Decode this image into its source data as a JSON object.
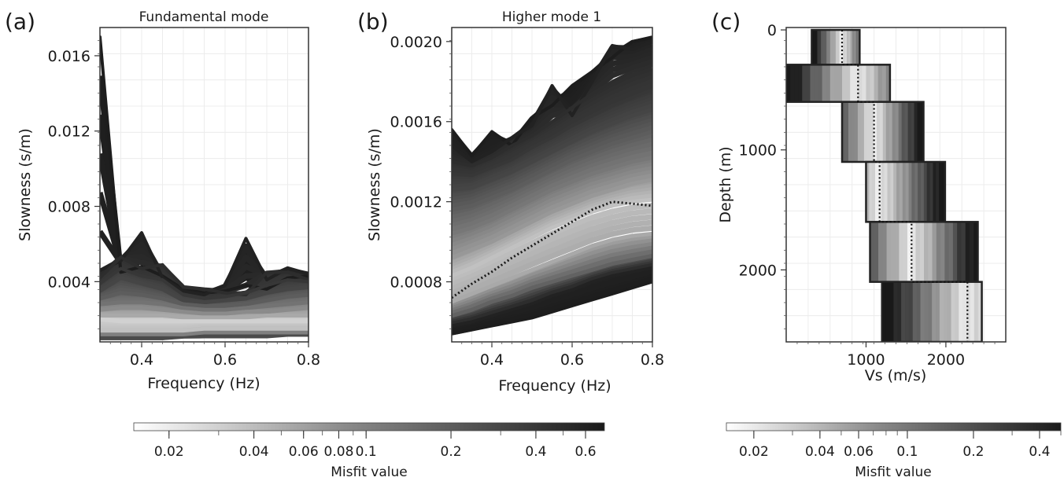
{
  "panels": {
    "a": {
      "label": "(a)"
    },
    "b": {
      "label": "(b)"
    },
    "c": {
      "label": "(c)"
    }
  },
  "chart_data": [
    {
      "id": "a",
      "type": "line",
      "title": "Fundamental mode",
      "xlabel": "Frequency (Hz)",
      "ylabel": "Slowness (s/m)",
      "xlim": [
        0.3,
        0.8
      ],
      "ylim": [
        0.0008,
        0.0175
      ],
      "xticks": [
        "0.4",
        "0.6",
        "0.8"
      ],
      "xtick_values": [
        0.4,
        0.6,
        0.8
      ],
      "yticks": [
        "0.004",
        "0.008",
        "0.012",
        "0.016"
      ],
      "ytick_values": [
        0.004,
        0.008,
        0.012,
        0.016
      ],
      "grid": true,
      "color_by": "misfit",
      "x": [
        0.3,
        0.35,
        0.4,
        0.45,
        0.5,
        0.55,
        0.6,
        0.65,
        0.7,
        0.75,
        0.8
      ],
      "series": [
        {
          "values": [
            0.017,
            0.0045,
            0.0048,
            0.0043,
            0.0036,
            0.0034,
            0.0035,
            0.0038,
            0.0036,
            0.0042,
            0.0043
          ],
          "misfit": 0.65
        },
        {
          "values": [
            0.0046,
            0.0051,
            0.0066,
            0.0042,
            0.0035,
            0.0033,
            0.0038,
            0.0063,
            0.0041,
            0.0047,
            0.0044
          ],
          "misfit": 0.6
        },
        {
          "values": [
            0.0042,
            0.0053,
            0.0047,
            0.0049,
            0.0037,
            0.0036,
            0.0034,
            0.0033,
            0.0045,
            0.0045,
            0.0041
          ],
          "misfit": 0.5
        },
        {
          "values": [
            0.0039,
            0.0047,
            0.0043,
            0.0041,
            0.0033,
            0.0031,
            0.0032,
            0.0034,
            0.0038,
            0.0041,
            0.004
          ],
          "misfit": 0.42
        },
        {
          "values": [
            0.0035,
            0.0042,
            0.0039,
            0.0036,
            0.003,
            0.0029,
            0.003,
            0.0031,
            0.0034,
            0.0036,
            0.0037
          ],
          "misfit": 0.33
        },
        {
          "values": [
            0.0031,
            0.0034,
            0.0033,
            0.0031,
            0.0028,
            0.0027,
            0.0027,
            0.0028,
            0.003,
            0.0032,
            0.0033
          ],
          "misfit": 0.22
        },
        {
          "values": [
            0.0028,
            0.0029,
            0.0029,
            0.0028,
            0.0026,
            0.0025,
            0.0025,
            0.0026,
            0.0027,
            0.0028,
            0.0029
          ],
          "misfit": 0.15
        },
        {
          "values": [
            0.0025,
            0.0026,
            0.0026,
            0.0025,
            0.0024,
            0.0023,
            0.0023,
            0.0024,
            0.0024,
            0.0025,
            0.0026
          ],
          "misfit": 0.1
        },
        {
          "values": [
            0.0022,
            0.0022,
            0.0022,
            0.0022,
            0.0021,
            0.0021,
            0.0021,
            0.0021,
            0.0022,
            0.0022,
            0.0022
          ],
          "misfit": 0.06
        },
        {
          "values": [
            0.002,
            0.0019,
            0.0019,
            0.0019,
            0.0019,
            0.0019,
            0.0019,
            0.0019,
            0.0019,
            0.0019,
            0.0019
          ],
          "misfit": 0.03
        },
        {
          "values": [
            0.0014,
            0.0014,
            0.0014,
            0.0014,
            0.0014,
            0.0015,
            0.0015,
            0.0015,
            0.0015,
            0.0015,
            0.0015
          ],
          "misfit": 0.04
        },
        {
          "values": [
            0.0012,
            0.0012,
            0.0012,
            0.0012,
            0.0012,
            0.0013,
            0.0013,
            0.0013,
            0.0013,
            0.0013,
            0.0013
          ],
          "misfit": 0.12
        },
        {
          "values": [
            0.001,
            0.001,
            0.001,
            0.001,
            0.0011,
            0.0011,
            0.0011,
            0.0011,
            0.0011,
            0.0012,
            0.0012
          ],
          "misfit": 0.3
        }
      ]
    },
    {
      "id": "b",
      "type": "line",
      "title": "Higher mode 1",
      "xlabel": "Frequency (Hz)",
      "ylabel": "Slowness (s/m)",
      "xlim": [
        0.3,
        0.8
      ],
      "ylim": [
        0.0005,
        0.00207
      ],
      "xticks": [
        "0.4",
        "0.6",
        "0.8"
      ],
      "xtick_values": [
        0.4,
        0.6,
        0.8
      ],
      "yticks": [
        "0.0008",
        "0.0012",
        "0.0016",
        "0.0020"
      ],
      "ytick_values": [
        0.0008,
        0.0012,
        0.0016,
        0.002
      ],
      "grid": true,
      "color_by": "misfit",
      "x": [
        0.3,
        0.35,
        0.4,
        0.45,
        0.5,
        0.55,
        0.6,
        0.65,
        0.7,
        0.75,
        0.8
      ],
      "series": [
        {
          "values": [
            0.00156,
            0.00143,
            0.00155,
            0.00148,
            0.00162,
            0.00168,
            0.00178,
            0.00185,
            0.00192,
            0.002,
            0.00202
          ],
          "misfit": 0.65
        },
        {
          "values": [
            0.00148,
            0.0014,
            0.00145,
            0.00152,
            0.00158,
            0.00178,
            0.00163,
            0.0018,
            0.00198,
            0.00196,
            0.002
          ],
          "misfit": 0.6
        },
        {
          "values": [
            0.0014,
            0.00138,
            0.00142,
            0.00148,
            0.00153,
            0.0016,
            0.00167,
            0.00174,
            0.0018,
            0.00185,
            0.00188
          ],
          "misfit": 0.5
        },
        {
          "values": [
            0.00134,
            0.00133,
            0.00137,
            0.00141,
            0.00147,
            0.00152,
            0.00158,
            0.00163,
            0.00168,
            0.00172,
            0.00176
          ],
          "misfit": 0.42
        },
        {
          "values": [
            0.00126,
            0.00127,
            0.00131,
            0.00135,
            0.0014,
            0.00145,
            0.0015,
            0.00155,
            0.00159,
            0.00163,
            0.00166
          ],
          "misfit": 0.33
        },
        {
          "values": [
            0.00116,
            0.00118,
            0.00122,
            0.00126,
            0.00131,
            0.00136,
            0.00141,
            0.00145,
            0.00149,
            0.00152,
            0.00155
          ],
          "misfit": 0.22
        },
        {
          "values": [
            0.00104,
            0.00107,
            0.00111,
            0.00116,
            0.00121,
            0.00126,
            0.0013,
            0.00134,
            0.00137,
            0.0014,
            0.00142
          ],
          "misfit": 0.14
        },
        {
          "values": [
            0.00092,
            0.00096,
            0.001,
            0.00105,
            0.0011,
            0.00115,
            0.00119,
            0.00123,
            0.00126,
            0.00129,
            0.00131
          ],
          "misfit": 0.08
        },
        {
          "values": [
            0.00083,
            0.00087,
            0.00092,
            0.00097,
            0.00102,
            0.00107,
            0.00111,
            0.00115,
            0.00118,
            0.0012,
            0.00121
          ],
          "misfit": 0.04
        },
        {
          "values": [
            0.0007,
            0.00074,
            0.00078,
            0.00082,
            0.00086,
            0.0009,
            0.00094,
            0.00098,
            0.00101,
            0.00103,
            0.00104
          ],
          "misfit": 0.06
        },
        {
          "values": [
            0.00063,
            0.00066,
            0.0007,
            0.00073,
            0.00077,
            0.0008,
            0.00083,
            0.00086,
            0.00089,
            0.00091,
            0.00093
          ],
          "misfit": 0.2
        },
        {
          "values": [
            0.00058,
            0.0006,
            0.00063,
            0.00066,
            0.00069,
            0.00073,
            0.00076,
            0.0008,
            0.00083,
            0.00085,
            0.00087
          ],
          "misfit": 0.6
        },
        {
          "values": [
            0.00054,
            0.00056,
            0.00058,
            0.0006,
            0.00062,
            0.00065,
            0.00068,
            0.00071,
            0.00074,
            0.00077,
            0.0008
          ],
          "misfit": 0.65
        },
        {
          "values": [
            0.00072,
            0.00079,
            0.00085,
            0.00092,
            0.00098,
            0.00104,
            0.0011,
            0.00116,
            0.0012,
            0.00119,
            0.00118
          ],
          "dotted": true
        }
      ]
    },
    {
      "id": "c",
      "type": "line",
      "xlabel": "Vs (m/s)",
      "ylabel": "Depth (m)",
      "xlim": [
        0,
        2750
      ],
      "ylim": [
        2600,
        -20
      ],
      "xticks": [
        "1000",
        "2000"
      ],
      "xtick_values": [
        1000,
        2000
      ],
      "yticks": [
        "0",
        "1000",
        "2000"
      ],
      "ytick_values": [
        0,
        1000,
        2000
      ],
      "grid": true,
      "color_by": "misfit",
      "layers": [
        {
          "top": 0,
          "bottom": 290,
          "vs_min": 320,
          "vs_max": 920,
          "best_vs": 700
        },
        {
          "top": 290,
          "bottom": 600,
          "vs_min": 0,
          "vs_max": 1300,
          "best_vs": 900
        },
        {
          "top": 600,
          "bottom": 1100,
          "vs_min": 700,
          "vs_max": 1720,
          "best_vs": 1100
        },
        {
          "top": 1100,
          "bottom": 1600,
          "vs_min": 1000,
          "vs_max": 1990,
          "best_vs": 1170
        },
        {
          "top": 1600,
          "bottom": 2100,
          "vs_min": 1050,
          "vs_max": 2400,
          "best_vs": 1570
        },
        {
          "top": 2100,
          "bottom": 2600,
          "vs_min": 1200,
          "vs_max": 2450,
          "best_vs": 2270
        }
      ]
    }
  ],
  "colorbars": [
    {
      "id": "cb-left",
      "label": "Misfit value",
      "scale": "log",
      "range": [
        0.015,
        0.7
      ],
      "ticks": [
        "0.02",
        "0.04",
        "0.06",
        "0.08",
        "0.1",
        "0.2",
        "0.4",
        "0.6"
      ],
      "tick_values": [
        0.02,
        0.04,
        0.06,
        0.08,
        0.1,
        0.2,
        0.4,
        0.6
      ]
    },
    {
      "id": "cb-right",
      "label": "Misfit value",
      "scale": "log",
      "range": [
        0.015,
        0.5
      ],
      "ticks": [
        "0.02",
        "0.04",
        "0.06",
        "0.1",
        "0.2",
        "0.4"
      ],
      "tick_values": [
        0.02,
        0.04,
        0.06,
        0.1,
        0.2,
        0.4
      ]
    }
  ]
}
